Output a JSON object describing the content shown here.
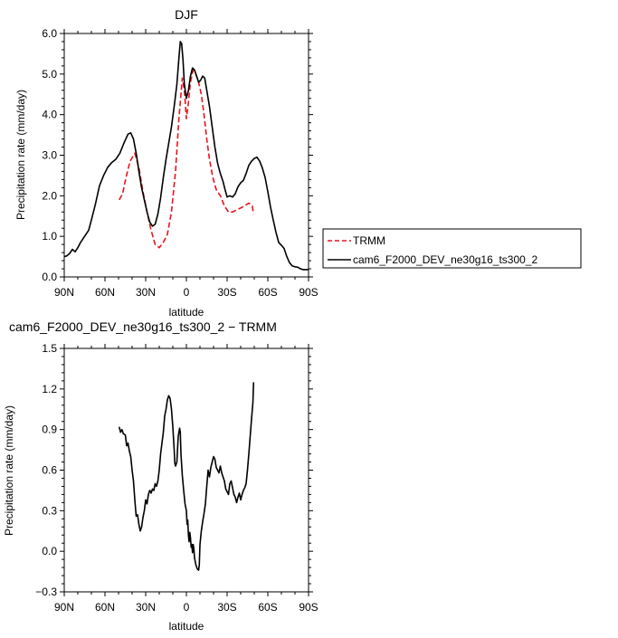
{
  "chart_data": [
    {
      "type": "line",
      "title": "DJF",
      "xlabel": "latitude",
      "ylabel": "Precipitation rate (mm/day)",
      "xlim": [
        -90,
        90
      ],
      "ylim": [
        0,
        6
      ],
      "x_reversed": true,
      "xticks": [
        -90,
        -60,
        -30,
        0,
        30,
        60,
        90
      ],
      "xtick_labels": [
        "90N",
        "60N",
        "30N",
        "0",
        "30S",
        "60S",
        "90S"
      ],
      "yticks": [
        0,
        1,
        2,
        3,
        4,
        5,
        6
      ],
      "ytick_labels": [
        "0.0",
        "1.0",
        "2.0",
        "3.0",
        "4.0",
        "5.0",
        "6.0"
      ],
      "grid": false,
      "legend_position": "outside-right",
      "series": [
        {
          "name": "TRMM",
          "color": "#e8141b",
          "dash": "dashed",
          "points": [
            [
              -49.5,
              1.9
            ],
            [
              -47,
              2.05
            ],
            [
              -44.5,
              2.45
            ],
            [
              -41.5,
              2.85
            ],
            [
              -38,
              3.05
            ],
            [
              -35,
              2.7
            ],
            [
              -32,
              2.1
            ],
            [
              -29,
              1.6
            ],
            [
              -26,
              1.15
            ],
            [
              -23,
              0.8
            ],
            [
              -20,
              0.72
            ],
            [
              -17,
              0.85
            ],
            [
              -14,
              1.05
            ],
            [
              -11,
              1.6
            ],
            [
              -8,
              2.6
            ],
            [
              -5.5,
              3.9
            ],
            [
              -3,
              4.9
            ],
            [
              -1.5,
              4.6
            ],
            [
              0,
              3.9
            ],
            [
              1.5,
              4.3
            ],
            [
              3,
              4.8
            ],
            [
              5,
              5.1
            ],
            [
              7,
              5.0
            ],
            [
              9,
              4.8
            ],
            [
              11,
              4.5
            ],
            [
              13,
              4.0
            ],
            [
              15,
              3.4
            ],
            [
              17,
              2.9
            ],
            [
              19.5,
              2.45
            ],
            [
              22,
              2.15
            ],
            [
              25,
              2.0
            ],
            [
              28,
              1.75
            ],
            [
              31,
              1.6
            ],
            [
              34,
              1.6
            ],
            [
              37,
              1.65
            ],
            [
              40,
              1.7
            ],
            [
              43,
              1.75
            ],
            [
              46,
              1.82
            ],
            [
              48.5,
              1.75
            ],
            [
              49.5,
              1.55
            ]
          ]
        },
        {
          "name": "cam6_F2000_DEV_ne30g16_ts300_2",
          "color": "#000000",
          "dash": "solid",
          "points": [
            [
              -90,
              0.5
            ],
            [
              -88,
              0.52
            ],
            [
              -86,
              0.58
            ],
            [
              -84,
              0.68
            ],
            [
              -82,
              0.62
            ],
            [
              -80,
              0.72
            ],
            [
              -78,
              0.85
            ],
            [
              -75,
              1.0
            ],
            [
              -72,
              1.15
            ],
            [
              -70,
              1.4
            ],
            [
              -67,
              1.8
            ],
            [
              -64,
              2.25
            ],
            [
              -61,
              2.5
            ],
            [
              -58,
              2.7
            ],
            [
              -55,
              2.82
            ],
            [
              -52,
              2.9
            ],
            [
              -49,
              3.05
            ],
            [
              -46,
              3.3
            ],
            [
              -43,
              3.52
            ],
            [
              -41,
              3.55
            ],
            [
              -39,
              3.4
            ],
            [
              -37,
              3.05
            ],
            [
              -35,
              2.6
            ],
            [
              -33,
              2.2
            ],
            [
              -31,
              1.9
            ],
            [
              -29,
              1.6
            ],
            [
              -27,
              1.35
            ],
            [
              -25,
              1.25
            ],
            [
              -23,
              1.3
            ],
            [
              -21,
              1.55
            ],
            [
              -19,
              1.95
            ],
            [
              -17,
              2.45
            ],
            [
              -15,
              2.9
            ],
            [
              -13,
              3.3
            ],
            [
              -11,
              3.7
            ],
            [
              -9,
              4.2
            ],
            [
              -7,
              4.75
            ],
            [
              -5.5,
              5.4
            ],
            [
              -4.5,
              5.8
            ],
            [
              -3.5,
              5.75
            ],
            [
              -2.5,
              5.35
            ],
            [
              -1.5,
              4.75
            ],
            [
              0,
              4.4
            ],
            [
              1.5,
              4.6
            ],
            [
              3,
              4.95
            ],
            [
              4.5,
              5.15
            ],
            [
              6,
              5.1
            ],
            [
              7.5,
              4.95
            ],
            [
              9,
              4.8
            ],
            [
              10.5,
              4.85
            ],
            [
              12,
              4.95
            ],
            [
              13.5,
              4.9
            ],
            [
              15,
              4.6
            ],
            [
              17,
              4.2
            ],
            [
              19,
              3.7
            ],
            [
              21,
              3.2
            ],
            [
              23,
              2.8
            ],
            [
              25,
              2.55
            ],
            [
              27,
              2.35
            ],
            [
              28.5,
              2.15
            ],
            [
              30,
              1.97
            ],
            [
              32,
              2.0
            ],
            [
              34,
              1.97
            ],
            [
              36,
              2.05
            ],
            [
              38,
              2.22
            ],
            [
              40,
              2.32
            ],
            [
              42,
              2.38
            ],
            [
              44,
              2.55
            ],
            [
              46,
              2.75
            ],
            [
              48,
              2.85
            ],
            [
              50,
              2.92
            ],
            [
              52,
              2.95
            ],
            [
              54,
              2.85
            ],
            [
              56,
              2.68
            ],
            [
              58,
              2.45
            ],
            [
              60,
              2.1
            ],
            [
              62,
              1.72
            ],
            [
              64,
              1.4
            ],
            [
              66,
              1.1
            ],
            [
              68,
              0.85
            ],
            [
              70,
              0.78
            ],
            [
              72,
              0.7
            ],
            [
              74,
              0.5
            ],
            [
              76,
              0.35
            ],
            [
              78,
              0.27
            ],
            [
              80,
              0.25
            ],
            [
              82,
              0.24
            ],
            [
              84,
              0.2
            ],
            [
              86,
              0.18
            ],
            [
              88,
              0.18
            ],
            [
              90,
              0.18
            ]
          ]
        }
      ]
    },
    {
      "type": "line",
      "title": "cam6_F2000_DEV_ne30g16_ts300_2 − TRMM",
      "xlabel": "latitude",
      "ylabel": "Precipitation rate (mm/day)",
      "xlim": [
        -90,
        90
      ],
      "ylim": [
        -0.3,
        1.5
      ],
      "x_reversed": true,
      "xticks": [
        -90,
        -60,
        -30,
        0,
        30,
        60,
        90
      ],
      "xtick_labels": [
        "90N",
        "60N",
        "30N",
        "0",
        "30S",
        "60S",
        "90S"
      ],
      "yticks": [
        -0.3,
        0,
        0.3,
        0.6,
        0.9,
        1.2,
        1.5
      ],
      "ytick_labels": [
        "−0.3",
        "0.0",
        "0.3",
        "0.6",
        "0.9",
        "1.2",
        "1.5"
      ],
      "grid": false,
      "series": [
        {
          "color": "#000000",
          "dash": "solid",
          "points": [
            [
              -49.5,
              0.92
            ],
            [
              -48.5,
              0.88
            ],
            [
              -47.5,
              0.9
            ],
            [
              -46.5,
              0.87
            ],
            [
              -45,
              0.86
            ],
            [
              -44,
              0.78
            ],
            [
              -43,
              0.8
            ],
            [
              -42,
              0.74
            ],
            [
              -41,
              0.7
            ],
            [
              -40,
              0.6
            ],
            [
              -39,
              0.52
            ],
            [
              -38,
              0.38
            ],
            [
              -37,
              0.26
            ],
            [
              -36,
              0.27
            ],
            [
              -35,
              0.2
            ],
            [
              -34,
              0.15
            ],
            [
              -33,
              0.18
            ],
            [
              -32,
              0.25
            ],
            [
              -31,
              0.3
            ],
            [
              -30,
              0.38
            ],
            [
              -29,
              0.35
            ],
            [
              -28,
              0.42
            ],
            [
              -27,
              0.45
            ],
            [
              -26,
              0.43
            ],
            [
              -25,
              0.46
            ],
            [
              -24,
              0.45
            ],
            [
              -23,
              0.5
            ],
            [
              -22,
              0.48
            ],
            [
              -21,
              0.52
            ],
            [
              -20,
              0.6
            ],
            [
              -19,
              0.72
            ],
            [
              -18,
              0.8
            ],
            [
              -17,
              0.88
            ],
            [
              -16,
              1.0
            ],
            [
              -15,
              1.05
            ],
            [
              -14,
              1.12
            ],
            [
              -13,
              1.15
            ],
            [
              -12,
              1.13
            ],
            [
              -11,
              1.05
            ],
            [
              -10,
              0.92
            ],
            [
              -9,
              0.75
            ],
            [
              -8.5,
              0.65
            ],
            [
              -8,
              0.63
            ],
            [
              -7,
              0.66
            ],
            [
              -6.5,
              0.76
            ],
            [
              -6,
              0.85
            ],
            [
              -5,
              0.91
            ],
            [
              -4.5,
              0.88
            ],
            [
              -4,
              0.72
            ],
            [
              -3,
              0.56
            ],
            [
              -2,
              0.45
            ],
            [
              -1,
              0.35
            ],
            [
              0,
              0.3
            ],
            [
              0.5,
              0.2
            ],
            [
              1,
              0.23
            ],
            [
              1.5,
              0.12
            ],
            [
              2,
              0.07
            ],
            [
              2.5,
              0.14
            ],
            [
              3,
              0.1
            ],
            [
              3.5,
              0.03
            ],
            [
              4,
              0.05
            ],
            [
              4.5,
              -0.01
            ],
            [
              5,
              0.05
            ],
            [
              5.5,
              0.02
            ],
            [
              6,
              -0.05
            ],
            [
              7,
              -0.1
            ],
            [
              8,
              -0.13
            ],
            [
              9,
              -0.14
            ],
            [
              9.5,
              -0.1
            ],
            [
              10,
              0.05
            ],
            [
              11,
              0.15
            ],
            [
              12,
              0.22
            ],
            [
              13,
              0.28
            ],
            [
              14,
              0.35
            ],
            [
              15,
              0.48
            ],
            [
              16,
              0.6
            ],
            [
              17,
              0.55
            ],
            [
              18,
              0.62
            ],
            [
              19,
              0.66
            ],
            [
              20,
              0.7
            ],
            [
              21,
              0.68
            ],
            [
              22,
              0.62
            ],
            [
              23,
              0.6
            ],
            [
              24,
              0.58
            ],
            [
              25,
              0.63
            ],
            [
              26,
              0.58
            ],
            [
              27,
              0.55
            ],
            [
              28,
              0.52
            ],
            [
              29,
              0.46
            ],
            [
              30,
              0.44
            ],
            [
              31,
              0.42
            ],
            [
              32,
              0.5
            ],
            [
              33,
              0.52
            ],
            [
              34,
              0.47
            ],
            [
              35,
              0.42
            ],
            [
              36,
              0.4
            ],
            [
              37,
              0.36
            ],
            [
              38,
              0.4
            ],
            [
              39,
              0.43
            ],
            [
              40,
              0.38
            ],
            [
              41,
              0.42
            ],
            [
              42,
              0.45
            ],
            [
              43,
              0.47
            ],
            [
              44,
              0.5
            ],
            [
              45,
              0.6
            ],
            [
              46,
              0.72
            ],
            [
              47,
              0.85
            ],
            [
              48,
              0.98
            ],
            [
              49,
              1.1
            ],
            [
              49.5,
              1.25
            ]
          ]
        }
      ]
    }
  ]
}
